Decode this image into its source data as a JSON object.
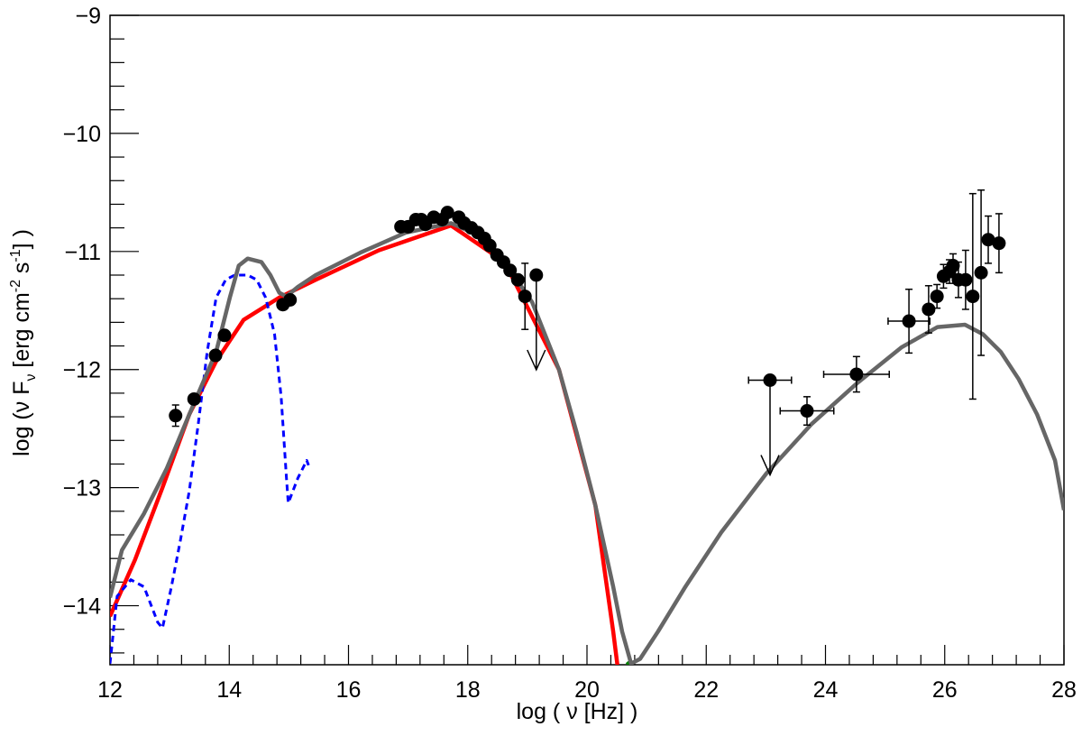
{
  "chart_data": {
    "type": "line",
    "x_label": "log ( ν [Hz] )",
    "y_label": [
      "log (ν F",
      "ν",
      " [erg cm",
      "-2",
      " s",
      "-1",
      "] )"
    ],
    "xlim": [
      12,
      28
    ],
    "ylim": [
      -14.5,
      -9
    ],
    "xticks": [
      12,
      14,
      16,
      18,
      20,
      22,
      24,
      26,
      28
    ],
    "yticks": [
      {
        "value": -9,
        "label": "−9"
      },
      {
        "value": -10,
        "label": "−10"
      },
      {
        "value": -11,
        "label": "−11"
      },
      {
        "value": -12,
        "label": "−12"
      },
      {
        "value": -13,
        "label": "−13"
      },
      {
        "value": -14,
        "label": "−14"
      }
    ],
    "xminorticks": [
      12.4,
      12.8,
      13.2,
      13.6,
      14.4,
      14.8,
      15.2,
      15.6,
      16.4,
      16.8,
      17.2,
      17.6,
      18.4,
      18.8,
      19.2,
      19.6,
      20.4,
      20.8,
      21.2,
      21.6,
      22.4,
      22.8,
      23.2,
      23.6,
      24.4,
      24.8,
      25.2,
      25.6,
      26.4,
      26.8,
      27.2,
      27.6
    ],
    "yminorticks": [
      -9.2,
      -9.4,
      -9.6,
      -9.8,
      -10.2,
      -10.4,
      -10.6,
      -10.8,
      -11.2,
      -11.4,
      -11.6,
      -11.8,
      -12.2,
      -12.4,
      -12.6,
      -12.8,
      -13.2,
      -13.4,
      -13.6,
      -13.8,
      -14.2,
      -14.4
    ],
    "series": [
      {
        "color": "#ff0000",
        "dash": false,
        "x": [
          12.0,
          12.42,
          12.88,
          13.33,
          13.78,
          14.24,
          14.84,
          15.45,
          16.51,
          17.72,
          18.62,
          19.53,
          20.14,
          20.44,
          20.51
        ],
        "values": [
          -14.09,
          -13.61,
          -13.0,
          -12.38,
          -11.93,
          -11.58,
          -11.39,
          -11.24,
          -10.99,
          -10.78,
          -11.09,
          -12.0,
          -13.15,
          -14.22,
          -14.5
        ]
      },
      {
        "color": "#0000ff",
        "dash": true,
        "x": [
          12.0,
          12.12,
          12.35,
          12.57,
          12.8,
          12.88,
          13.03,
          13.18,
          13.33,
          13.48,
          13.63,
          13.78,
          13.94,
          14.09,
          14.31,
          14.46,
          14.61,
          14.76,
          14.87,
          14.96,
          14.99,
          15.15,
          15.3,
          15.33
        ],
        "values": [
          -14.49,
          -13.92,
          -13.78,
          -13.84,
          -14.14,
          -14.19,
          -13.84,
          -13.45,
          -13.03,
          -12.46,
          -11.85,
          -11.39,
          -11.24,
          -11.2,
          -11.2,
          -11.24,
          -11.39,
          -11.7,
          -12.23,
          -12.92,
          -13.13,
          -12.92,
          -12.77,
          -12.81
        ]
      },
      {
        "color": "#008000",
        "dash": false,
        "x": [
          20.67,
          20.74
        ],
        "values": [
          -14.5,
          -14.47
        ]
      },
      {
        "color": "#666666",
        "dash": false,
        "x": [
          12.0,
          12.2,
          12.57,
          12.95,
          13.33,
          13.78,
          14.01,
          14.16,
          14.31,
          14.54,
          14.69,
          14.84,
          14.96,
          15.15,
          15.45,
          16.2,
          16.96,
          17.72,
          18.17,
          18.62,
          19.08,
          19.53,
          19.83,
          20.14,
          20.44,
          20.59,
          20.74,
          20.89,
          21.19,
          21.65,
          22.25,
          23.01,
          23.77,
          24.52,
          25.28,
          25.88,
          26.34,
          26.64,
          26.94,
          27.24,
          27.55,
          27.85,
          28.0
        ],
        "values": [
          -13.93,
          -13.53,
          -13.22,
          -12.84,
          -12.38,
          -11.85,
          -11.39,
          -11.12,
          -11.06,
          -11.09,
          -11.2,
          -11.35,
          -11.38,
          -11.3,
          -11.2,
          -11.01,
          -10.84,
          -10.76,
          -10.86,
          -11.09,
          -11.43,
          -12.0,
          -12.54,
          -13.15,
          -13.84,
          -14.22,
          -14.49,
          -14.45,
          -14.22,
          -13.84,
          -13.38,
          -12.88,
          -12.46,
          -12.12,
          -11.81,
          -11.64,
          -11.62,
          -11.7,
          -11.85,
          -12.08,
          -12.38,
          -12.77,
          -13.19
        ]
      }
    ],
    "points": {
      "color": "#000000",
      "x": [
        13.1,
        13.41,
        13.77,
        13.92,
        14.9,
        15.02,
        16.88,
        17.0,
        17.13,
        17.22,
        17.29,
        17.43,
        17.57,
        17.66,
        17.85,
        17.94,
        18.06,
        18.17,
        18.28,
        18.37,
        18.49,
        18.6,
        18.71,
        18.84,
        18.96,
        23.69,
        24.52,
        25.4,
        25.73,
        25.87,
        25.98,
        26.08,
        26.14,
        26.23,
        26.35,
        26.47,
        26.61,
        26.73,
        26.91
      ],
      "values": [
        -12.39,
        -12.25,
        -11.88,
        -11.71,
        -11.45,
        -11.41,
        -10.79,
        -10.79,
        -10.73,
        -10.73,
        -10.77,
        -10.71,
        -10.73,
        -10.67,
        -10.71,
        -10.76,
        -10.8,
        -10.84,
        -10.89,
        -10.95,
        -11.03,
        -11.09,
        -11.16,
        -11.24,
        -11.38,
        -12.35,
        -12.04,
        -11.59,
        -11.49,
        -11.38,
        -11.21,
        -11.17,
        -11.12,
        -11.24,
        -11.24,
        -11.38,
        -11.18,
        -10.9,
        -10.93
      ],
      "yerr": [
        0.09,
        null,
        null,
        null,
        null,
        null,
        null,
        null,
        null,
        null,
        null,
        null,
        null,
        null,
        null,
        null,
        null,
        null,
        null,
        null,
        null,
        null,
        null,
        null,
        0.28,
        0.12,
        0.15,
        0.27,
        0.2,
        0.1,
        0.1,
        0.1,
        0.1,
        0.15,
        0.25,
        0.87,
        0.7,
        0.2,
        0.25
      ],
      "xerr": [
        null,
        null,
        null,
        null,
        null,
        null,
        null,
        null,
        null,
        null,
        null,
        null,
        null,
        null,
        null,
        null,
        null,
        null,
        null,
        null,
        null,
        null,
        null,
        null,
        null,
        0.45,
        0.55,
        0.35,
        null,
        null,
        null,
        null,
        null,
        null,
        null,
        null,
        null,
        null,
        null
      ]
    },
    "upper_limits": {
      "color": "#000000",
      "x": [
        19.15,
        23.07
      ],
      "values": [
        -11.2,
        -12.09
      ],
      "xerr": [
        null,
        0.36
      ]
    }
  }
}
